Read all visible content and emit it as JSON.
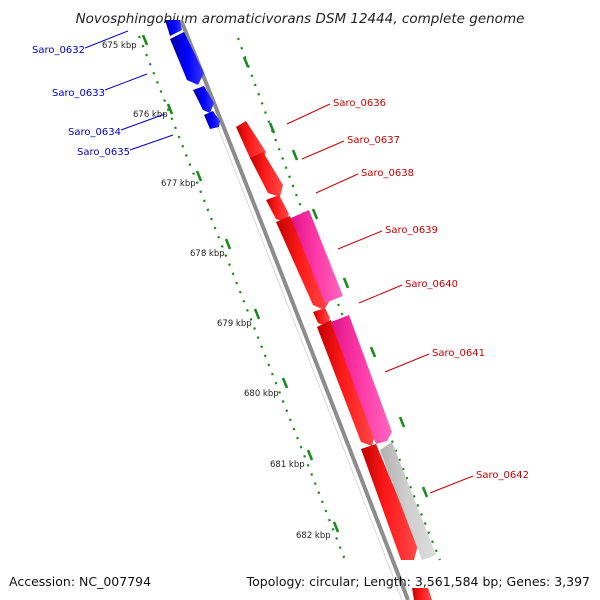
{
  "title": "Novosphingobium aromaticivorans DSM 12444, complete genome",
  "accession": "Accession: NC_007794",
  "topology": "Topology: circular; Length: 3,561,584 bp; Genes: 3,397",
  "colors": {
    "backbone": "#8c8c8c",
    "forward_gene": "#ff0000",
    "reverse_gene": "#0000ee",
    "pink_feature": "#ff2f9f",
    "gray_feature": "#c7c7c7",
    "tick": "#1c8a1c",
    "left_label": "#0000cc",
    "right_label": "#cc0000"
  },
  "ticks": [
    {
      "label": "675 kbp"
    },
    {
      "label": "676 kbp"
    },
    {
      "label": "677 kbp"
    },
    {
      "label": "678 kbp"
    },
    {
      "label": "679 kbp"
    },
    {
      "label": "680 kbp"
    },
    {
      "label": "681 kbp"
    },
    {
      "label": "682 kbp"
    }
  ],
  "genes_left": [
    {
      "name": "Saro_0632",
      "color": "#0000cc"
    },
    {
      "name": "Saro_0633",
      "color": "#0000cc"
    },
    {
      "name": "Saro_0634",
      "color": "#0000cc"
    },
    {
      "name": "Saro_0635",
      "color": "#0000cc"
    }
  ],
  "genes_right": [
    {
      "name": "Saro_0636",
      "color": "#cc0000"
    },
    {
      "name": "Saro_0637",
      "color": "#cc0000"
    },
    {
      "name": "Saro_0638",
      "color": "#cc0000"
    },
    {
      "name": "Saro_0639",
      "color": "#cc0000"
    },
    {
      "name": "Saro_0640",
      "color": "#cc0000"
    },
    {
      "name": "Saro_0641",
      "color": "#cc0000"
    },
    {
      "name": "Saro_0642",
      "color": "#cc0000"
    }
  ]
}
